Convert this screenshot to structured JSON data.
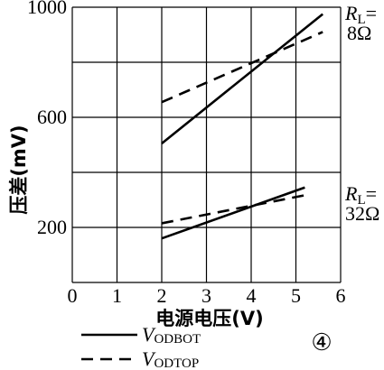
{
  "chart_data": {
    "type": "line",
    "title": "",
    "xlabel": "电源电压(V)",
    "ylabel": "压差(mV)",
    "xlim": [
      0,
      6
    ],
    "ylim": [
      0,
      1000
    ],
    "x_ticks": [
      "0",
      "1",
      "2",
      "3",
      "4",
      "5",
      "6"
    ],
    "y_ticks": [
      "200",
      "600",
      "1000"
    ],
    "y_tick_values": [
      200,
      600,
      1000
    ],
    "grid": true,
    "series": [
      {
        "name": "VODBOT",
        "style": "solid",
        "group": "RL=8Ω",
        "points": [
          [
            2,
            505
          ],
          [
            5.6,
            975
          ]
        ]
      },
      {
        "name": "VODTOP",
        "style": "dashed",
        "group": "RL=8Ω",
        "points": [
          [
            2,
            655
          ],
          [
            5.6,
            910
          ]
        ]
      },
      {
        "name": "VODBOT",
        "style": "solid",
        "group": "RL=32Ω",
        "points": [
          [
            2,
            160
          ],
          [
            5.2,
            345
          ]
        ]
      },
      {
        "name": "VODTOP",
        "style": "dashed",
        "group": "RL=32Ω",
        "points": [
          [
            2,
            215
          ],
          [
            5.3,
            320
          ]
        ]
      }
    ],
    "annotations": [
      {
        "id": "rl8",
        "prefix": "R",
        "sub": "L",
        "suffix": "=",
        "value": "8Ω"
      },
      {
        "id": "rl32",
        "prefix": "R",
        "sub": "L",
        "suffix": "=",
        "value": "32Ω"
      }
    ],
    "legend": {
      "placement": "bottom-left",
      "items": [
        {
          "prefix": "V",
          "sub": "ODBOT",
          "style": "solid"
        },
        {
          "prefix": "V",
          "sub": "ODTOP",
          "style": "dashed"
        }
      ]
    },
    "panel_label": "④"
  }
}
